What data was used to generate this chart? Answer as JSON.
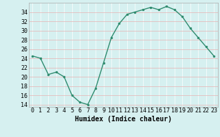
{
  "x": [
    0,
    1,
    2,
    3,
    4,
    5,
    6,
    7,
    8,
    9,
    10,
    11,
    12,
    13,
    14,
    15,
    16,
    17,
    18,
    19,
    20,
    21,
    22,
    23
  ],
  "y": [
    24.5,
    24.0,
    20.5,
    21.0,
    20.0,
    16.0,
    14.5,
    14.0,
    17.5,
    23.0,
    28.5,
    31.5,
    33.5,
    34.0,
    34.5,
    35.0,
    34.5,
    35.2,
    34.5,
    33.0,
    30.5,
    28.5,
    26.5,
    24.5
  ],
  "xlim": [
    -0.5,
    23.5
  ],
  "ylim": [
    13.5,
    36
  ],
  "yticks": [
    14,
    16,
    18,
    20,
    22,
    24,
    26,
    28,
    30,
    32,
    34
  ],
  "xticks": [
    0,
    1,
    2,
    3,
    4,
    5,
    6,
    7,
    8,
    9,
    10,
    11,
    12,
    13,
    14,
    15,
    16,
    17,
    18,
    19,
    20,
    21,
    22,
    23
  ],
  "xlabel": "Humidex (Indice chaleur)",
  "line_color": "#2e8b6e",
  "marker_color": "#2e8b6e",
  "bg_color": "#d6f0f0",
  "grid_v_color": "#ffffff",
  "grid_h_color": "#e8b0b0",
  "xlabel_fontsize": 7,
  "tick_fontsize": 6,
  "line_width": 1.0,
  "marker_size": 2.0
}
